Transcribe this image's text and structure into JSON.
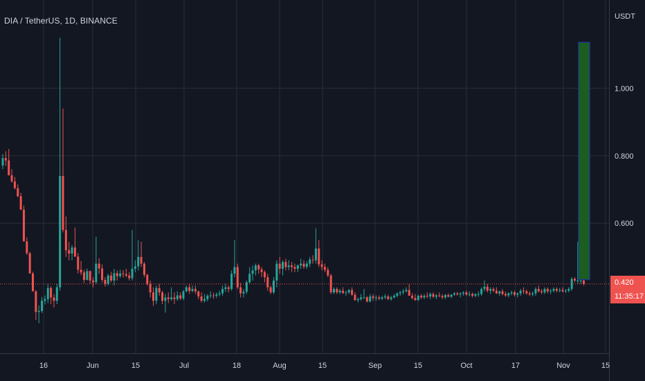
{
  "header": {
    "symbol_title": "DIA / TetherUS, 1D, BINANCE",
    "currency": "USDT"
  },
  "last_price": {
    "value": "0.420",
    "countdown": "11:35:17"
  },
  "colors": {
    "background": "#131722",
    "grid": "#2a2e39",
    "up": "#26a69a",
    "down": "#ef5350",
    "text": "#d1d4dc",
    "target_box_fill": "#1b5e20",
    "target_box_border": "#1e3a8a"
  },
  "chart_data": {
    "type": "candlestick",
    "y_axis": {
      "ticks": [
        "1.000",
        "0.800",
        "0.600"
      ],
      "tick_values": [
        1.0,
        0.8,
        0.6
      ],
      "range": [
        0.14,
        1.2
      ]
    },
    "x_axis": {
      "ticks": [
        "16",
        "Jun",
        "15",
        "Jul",
        "18",
        "Aug",
        "15",
        "Sep",
        "15",
        "Oct",
        "17",
        "Nov",
        "15"
      ]
    },
    "grid": true,
    "candles_ohlc": [
      [
        0.771,
        0.805,
        0.76,
        0.793
      ],
      [
        0.793,
        0.813,
        0.77,
        0.786
      ],
      [
        0.786,
        0.82,
        0.742,
        0.742
      ],
      [
        0.742,
        0.76,
        0.72,
        0.724
      ],
      [
        0.724,
        0.737,
        0.7,
        0.704
      ],
      [
        0.704,
        0.715,
        0.677,
        0.68
      ],
      [
        0.68,
        0.69,
        0.64,
        0.64
      ],
      [
        0.64,
        0.652,
        0.546,
        0.546
      ],
      [
        0.546,
        0.558,
        0.506,
        0.511
      ],
      [
        0.511,
        0.515,
        0.451,
        0.451
      ],
      [
        0.451,
        0.456,
        0.398,
        0.398
      ],
      [
        0.398,
        0.402,
        0.313,
        0.337
      ],
      [
        0.337,
        0.356,
        0.304,
        0.34
      ],
      [
        0.34,
        0.381,
        0.334,
        0.37
      ],
      [
        0.37,
        0.386,
        0.359,
        0.375
      ],
      [
        0.375,
        0.42,
        0.363,
        0.408
      ],
      [
        0.408,
        0.413,
        0.36,
        0.38
      ],
      [
        0.38,
        0.39,
        0.35,
        0.37
      ],
      [
        0.37,
        0.42,
        0.36,
        0.41
      ],
      [
        0.41,
        1.15,
        0.4,
        0.74
      ],
      [
        0.74,
        0.94,
        0.573,
        0.58
      ],
      [
        0.58,
        0.62,
        0.5,
        0.52
      ],
      [
        0.52,
        0.545,
        0.49,
        0.51
      ],
      [
        0.51,
        0.535,
        0.49,
        0.528
      ],
      [
        0.528,
        0.587,
        0.5,
        0.501
      ],
      [
        0.501,
        0.512,
        0.451,
        0.462
      ],
      [
        0.462,
        0.488,
        0.446,
        0.454
      ],
      [
        0.454,
        0.462,
        0.423,
        0.432
      ],
      [
        0.432,
        0.466,
        0.43,
        0.458
      ],
      [
        0.458,
        0.46,
        0.42,
        0.43
      ],
      [
        0.43,
        0.44,
        0.41,
        0.425
      ],
      [
        0.425,
        0.56,
        0.42,
        0.48
      ],
      [
        0.48,
        0.496,
        0.45,
        0.466
      ],
      [
        0.466,
        0.478,
        0.425,
        0.432
      ],
      [
        0.432,
        0.44,
        0.412,
        0.42
      ],
      [
        0.42,
        0.45,
        0.415,
        0.445
      ],
      [
        0.445,
        0.456,
        0.425,
        0.43
      ],
      [
        0.43,
        0.465,
        0.415,
        0.452
      ],
      [
        0.452,
        0.46,
        0.43,
        0.443
      ],
      [
        0.443,
        0.462,
        0.438,
        0.451
      ],
      [
        0.451,
        0.461,
        0.439,
        0.449
      ],
      [
        0.449,
        0.465,
        0.44,
        0.445
      ],
      [
        0.445,
        0.455,
        0.43,
        0.437
      ],
      [
        0.437,
        0.58,
        0.43,
        0.465
      ],
      [
        0.465,
        0.49,
        0.455,
        0.472
      ],
      [
        0.472,
        0.55,
        0.46,
        0.5
      ],
      [
        0.5,
        0.545,
        0.47,
        0.48
      ],
      [
        0.48,
        0.485,
        0.44,
        0.447
      ],
      [
        0.447,
        0.45,
        0.415,
        0.42
      ],
      [
        0.42,
        0.43,
        0.38,
        0.395
      ],
      [
        0.395,
        0.41,
        0.355,
        0.37
      ],
      [
        0.37,
        0.415,
        0.36,
        0.408
      ],
      [
        0.408,
        0.42,
        0.385,
        0.395
      ],
      [
        0.395,
        0.4,
        0.36,
        0.37
      ],
      [
        0.37,
        0.39,
        0.335,
        0.38
      ],
      [
        0.38,
        0.395,
        0.363,
        0.375
      ],
      [
        0.375,
        0.41,
        0.37,
        0.38
      ],
      [
        0.38,
        0.395,
        0.36,
        0.375
      ],
      [
        0.375,
        0.398,
        0.37,
        0.386
      ],
      [
        0.386,
        0.395,
        0.372,
        0.377
      ],
      [
        0.377,
        0.402,
        0.372,
        0.398
      ],
      [
        0.398,
        0.415,
        0.395,
        0.41
      ],
      [
        0.41,
        0.42,
        0.39,
        0.399
      ],
      [
        0.399,
        0.415,
        0.395,
        0.405
      ],
      [
        0.405,
        0.415,
        0.39,
        0.398
      ],
      [
        0.398,
        0.4,
        0.375,
        0.383
      ],
      [
        0.383,
        0.395,
        0.365,
        0.37
      ],
      [
        0.37,
        0.39,
        0.365,
        0.375
      ],
      [
        0.375,
        0.39,
        0.368,
        0.385
      ],
      [
        0.385,
        0.398,
        0.378,
        0.386
      ],
      [
        0.386,
        0.394,
        0.376,
        0.385
      ],
      [
        0.385,
        0.395,
        0.378,
        0.389
      ],
      [
        0.389,
        0.4,
        0.383,
        0.392
      ],
      [
        0.392,
        0.415,
        0.385,
        0.405
      ],
      [
        0.405,
        0.42,
        0.396,
        0.41
      ],
      [
        0.41,
        0.415,
        0.395,
        0.405
      ],
      [
        0.405,
        0.46,
        0.4,
        0.45
      ],
      [
        0.45,
        0.55,
        0.44,
        0.47
      ],
      [
        0.47,
        0.48,
        0.405,
        0.41
      ],
      [
        0.41,
        0.423,
        0.38,
        0.392
      ],
      [
        0.392,
        0.405,
        0.38,
        0.397
      ],
      [
        0.397,
        0.43,
        0.39,
        0.425
      ],
      [
        0.425,
        0.47,
        0.42,
        0.45
      ],
      [
        0.45,
        0.475,
        0.43,
        0.46
      ],
      [
        0.46,
        0.48,
        0.445,
        0.475
      ],
      [
        0.475,
        0.48,
        0.45,
        0.463
      ],
      [
        0.463,
        0.47,
        0.44,
        0.455
      ],
      [
        0.455,
        0.46,
        0.425,
        0.44
      ],
      [
        0.44,
        0.45,
        0.4,
        0.41
      ],
      [
        0.41,
        0.415,
        0.39,
        0.395
      ],
      [
        0.395,
        0.44,
        0.39,
        0.43
      ],
      [
        0.43,
        0.49,
        0.41,
        0.48
      ],
      [
        0.48,
        0.5,
        0.45,
        0.465
      ],
      [
        0.465,
        0.49,
        0.445,
        0.485
      ],
      [
        0.485,
        0.495,
        0.46,
        0.47
      ],
      [
        0.47,
        0.49,
        0.46,
        0.475
      ],
      [
        0.475,
        0.485,
        0.455,
        0.47
      ],
      [
        0.47,
        0.48,
        0.455,
        0.465
      ],
      [
        0.465,
        0.478,
        0.455,
        0.475
      ],
      [
        0.475,
        0.495,
        0.465,
        0.48
      ],
      [
        0.48,
        0.49,
        0.465,
        0.471
      ],
      [
        0.471,
        0.487,
        0.465,
        0.48
      ],
      [
        0.48,
        0.5,
        0.47,
        0.492
      ],
      [
        0.492,
        0.505,
        0.48,
        0.49
      ],
      [
        0.49,
        0.585,
        0.48,
        0.525
      ],
      [
        0.525,
        0.55,
        0.47,
        0.478
      ],
      [
        0.478,
        0.49,
        0.46,
        0.47
      ],
      [
        0.47,
        0.48,
        0.455,
        0.462
      ],
      [
        0.462,
        0.47,
        0.44,
        0.445
      ],
      [
        0.445,
        0.45,
        0.39,
        0.395
      ],
      [
        0.395,
        0.41,
        0.39,
        0.405
      ],
      [
        0.405,
        0.41,
        0.39,
        0.395
      ],
      [
        0.395,
        0.405,
        0.39,
        0.4
      ],
      [
        0.4,
        0.41,
        0.39,
        0.393
      ],
      [
        0.393,
        0.4,
        0.385,
        0.395
      ],
      [
        0.395,
        0.405,
        0.39,
        0.402
      ],
      [
        0.402,
        0.41,
        0.385,
        0.388
      ],
      [
        0.388,
        0.395,
        0.37,
        0.372
      ],
      [
        0.372,
        0.38,
        0.365,
        0.375
      ],
      [
        0.375,
        0.39,
        0.37,
        0.38
      ],
      [
        0.38,
        0.405,
        0.375,
        0.38
      ],
      [
        0.38,
        0.384,
        0.365,
        0.368
      ],
      [
        0.368,
        0.39,
        0.365,
        0.383
      ],
      [
        0.383,
        0.39,
        0.37,
        0.378
      ],
      [
        0.378,
        0.386,
        0.37,
        0.38
      ],
      [
        0.38,
        0.386,
        0.372,
        0.376
      ],
      [
        0.376,
        0.385,
        0.372,
        0.38
      ],
      [
        0.38,
        0.39,
        0.375,
        0.383
      ],
      [
        0.383,
        0.388,
        0.372,
        0.375
      ],
      [
        0.375,
        0.385,
        0.37,
        0.38
      ],
      [
        0.38,
        0.39,
        0.378,
        0.385
      ],
      [
        0.385,
        0.395,
        0.38,
        0.392
      ],
      [
        0.392,
        0.4,
        0.385,
        0.395
      ],
      [
        0.395,
        0.405,
        0.388,
        0.398
      ],
      [
        0.398,
        0.41,
        0.395,
        0.402
      ],
      [
        0.402,
        0.42,
        0.385,
        0.385
      ],
      [
        0.385,
        0.393,
        0.374,
        0.378
      ],
      [
        0.378,
        0.39,
        0.37,
        0.372
      ],
      [
        0.372,
        0.388,
        0.37,
        0.385
      ],
      [
        0.385,
        0.39,
        0.375,
        0.38
      ],
      [
        0.38,
        0.39,
        0.375,
        0.385
      ],
      [
        0.385,
        0.395,
        0.378,
        0.383
      ],
      [
        0.383,
        0.395,
        0.375,
        0.39
      ],
      [
        0.39,
        0.395,
        0.378,
        0.382
      ],
      [
        0.382,
        0.39,
        0.375,
        0.386
      ],
      [
        0.386,
        0.395,
        0.38,
        0.384
      ],
      [
        0.384,
        0.39,
        0.375,
        0.38
      ],
      [
        0.38,
        0.39,
        0.375,
        0.387
      ],
      [
        0.387,
        0.392,
        0.38,
        0.382
      ],
      [
        0.382,
        0.39,
        0.378,
        0.388
      ],
      [
        0.388,
        0.396,
        0.385,
        0.392
      ],
      [
        0.392,
        0.396,
        0.385,
        0.389
      ],
      [
        0.389,
        0.395,
        0.38,
        0.392
      ],
      [
        0.392,
        0.398,
        0.385,
        0.395
      ],
      [
        0.395,
        0.4,
        0.385,
        0.388
      ],
      [
        0.388,
        0.398,
        0.383,
        0.39
      ],
      [
        0.39,
        0.395,
        0.38,
        0.385
      ],
      [
        0.385,
        0.392,
        0.38,
        0.39
      ],
      [
        0.39,
        0.398,
        0.382,
        0.39
      ],
      [
        0.39,
        0.41,
        0.385,
        0.405
      ],
      [
        0.405,
        0.43,
        0.398,
        0.412
      ],
      [
        0.412,
        0.42,
        0.395,
        0.4
      ],
      [
        0.4,
        0.41,
        0.39,
        0.405
      ],
      [
        0.405,
        0.41,
        0.395,
        0.4
      ],
      [
        0.4,
        0.41,
        0.39,
        0.392
      ],
      [
        0.392,
        0.4,
        0.385,
        0.398
      ],
      [
        0.398,
        0.405,
        0.386,
        0.39
      ],
      [
        0.39,
        0.397,
        0.382,
        0.386
      ],
      [
        0.386,
        0.395,
        0.38,
        0.392
      ],
      [
        0.392,
        0.4,
        0.386,
        0.395
      ],
      [
        0.395,
        0.4,
        0.383,
        0.388
      ],
      [
        0.388,
        0.395,
        0.38,
        0.392
      ],
      [
        0.392,
        0.405,
        0.385,
        0.4
      ],
      [
        0.4,
        0.41,
        0.39,
        0.398
      ],
      [
        0.398,
        0.403,
        0.388,
        0.392
      ],
      [
        0.392,
        0.398,
        0.384,
        0.389
      ],
      [
        0.389,
        0.398,
        0.383,
        0.392
      ],
      [
        0.392,
        0.41,
        0.385,
        0.405
      ],
      [
        0.405,
        0.415,
        0.395,
        0.398
      ],
      [
        0.398,
        0.405,
        0.39,
        0.395
      ],
      [
        0.395,
        0.41,
        0.39,
        0.405
      ],
      [
        0.405,
        0.41,
        0.392,
        0.398
      ],
      [
        0.398,
        0.405,
        0.39,
        0.4
      ],
      [
        0.4,
        0.41,
        0.395,
        0.405
      ],
      [
        0.405,
        0.41,
        0.395,
        0.4
      ],
      [
        0.4,
        0.408,
        0.395,
        0.402
      ],
      [
        0.402,
        0.41,
        0.395,
        0.398
      ],
      [
        0.398,
        0.405,
        0.393,
        0.4
      ],
      [
        0.4,
        0.41,
        0.395,
        0.405
      ],
      [
        0.405,
        0.44,
        0.4,
        0.435
      ],
      [
        0.435,
        0.44,
        0.425,
        0.43
      ],
      [
        0.43,
        0.545,
        0.42,
        0.43
      ],
      [
        0.43,
        0.435,
        0.42,
        0.43
      ],
      [
        0.43,
        0.44,
        0.415,
        0.42
      ]
    ],
    "target_box": {
      "y_top": 1.136,
      "y_bottom": 0.433
    },
    "current_price_line": 0.42
  }
}
